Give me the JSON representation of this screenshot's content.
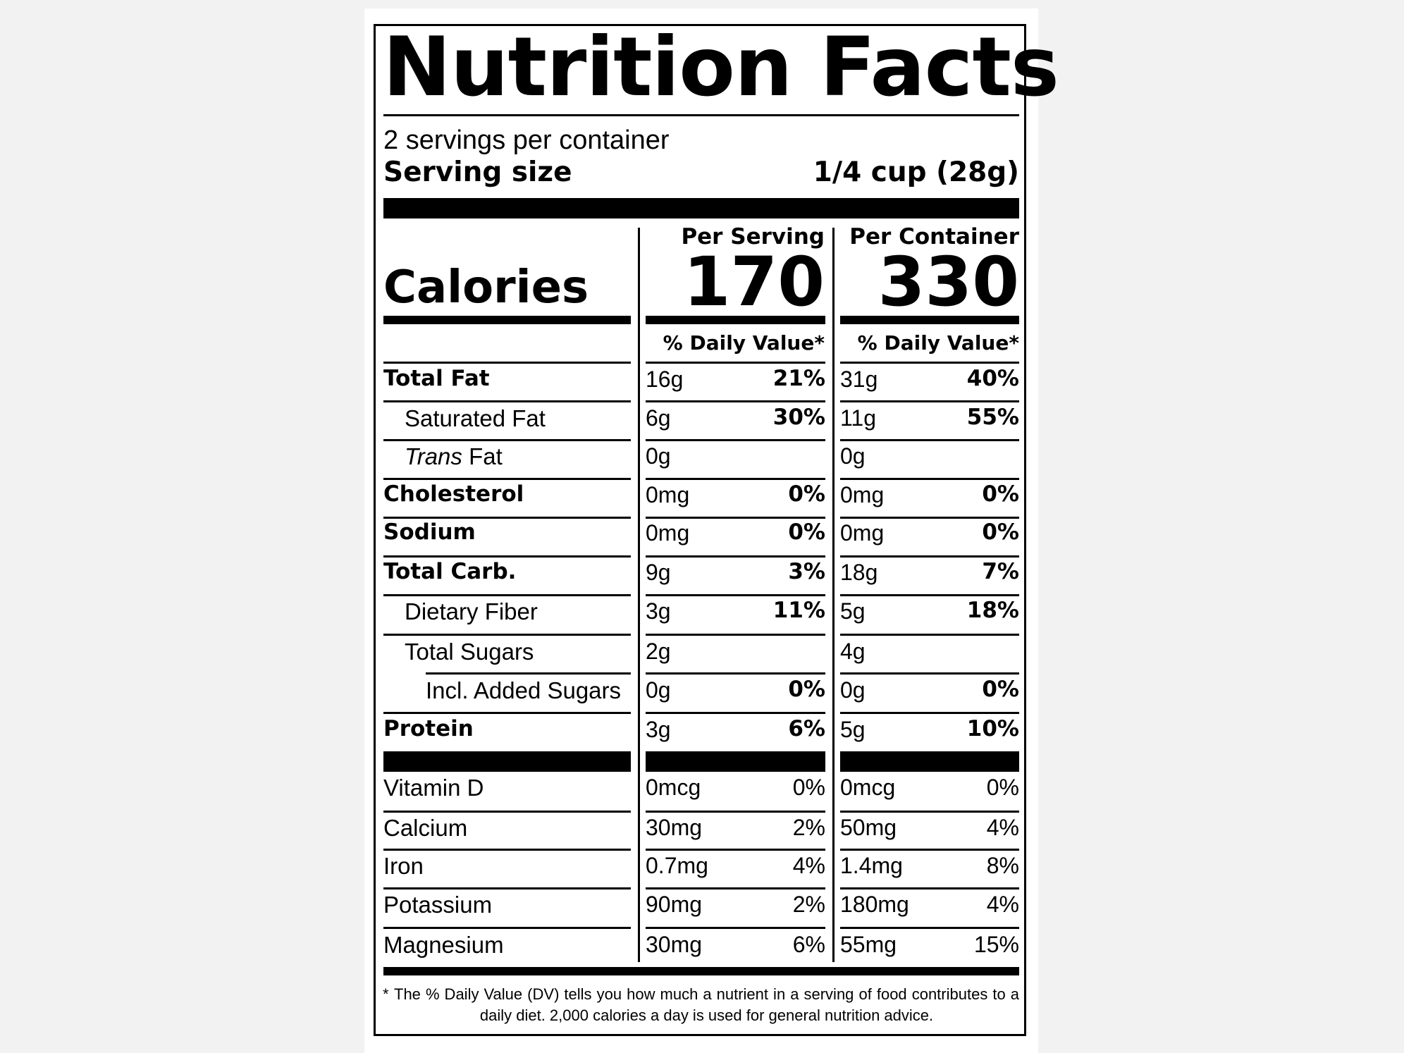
{
  "label": {
    "title": "Nutrition Facts",
    "servings_per_container": "2 servings per container",
    "serving_size_label": "Serving size",
    "serving_size_value": "1/4 cup (28g)",
    "calories_label": "Calories",
    "columns": [
      {
        "header": "Per Serving",
        "calories": "170",
        "dv_header": "% Daily Value*"
      },
      {
        "header": "Per Container",
        "calories": "330",
        "dv_header": "% Daily Value*"
      }
    ],
    "nutrients": [
      {
        "label": "Total Fat",
        "bold": true,
        "indent": 0,
        "serving": {
          "amount": "16g",
          "dv": "21%"
        },
        "container": {
          "amount": "31g",
          "dv": "40%"
        }
      },
      {
        "label": "Saturated Fat",
        "bold": false,
        "indent": 1,
        "serving": {
          "amount": "6g",
          "dv": "30%"
        },
        "container": {
          "amount": "11g",
          "dv": "55%"
        }
      },
      {
        "label_italic": "Trans",
        "label": "Fat",
        "bold": false,
        "indent": 1,
        "serving": {
          "amount": "0g",
          "dv": ""
        },
        "container": {
          "amount": "0g",
          "dv": ""
        }
      },
      {
        "label": "Cholesterol",
        "bold": true,
        "indent": 0,
        "serving": {
          "amount": "0mg",
          "dv": "0%"
        },
        "container": {
          "amount": "0mg",
          "dv": "0%"
        }
      },
      {
        "label": "Sodium",
        "bold": true,
        "indent": 0,
        "serving": {
          "amount": "0mg",
          "dv": "0%"
        },
        "container": {
          "amount": "0mg",
          "dv": "0%"
        }
      },
      {
        "label": "Total Carb.",
        "bold": true,
        "indent": 0,
        "serving": {
          "amount": "9g",
          "dv": "3%"
        },
        "container": {
          "amount": "18g",
          "dv": "7%"
        }
      },
      {
        "label": "Dietary Fiber",
        "bold": false,
        "indent": 1,
        "serving": {
          "amount": "3g",
          "dv": "11%"
        },
        "container": {
          "amount": "5g",
          "dv": "18%"
        }
      },
      {
        "label": "Total Sugars",
        "bold": false,
        "indent": 1,
        "serving": {
          "amount": "2g",
          "dv": ""
        },
        "container": {
          "amount": "4g",
          "dv": ""
        }
      },
      {
        "label": "Incl. Added Sugars",
        "bold": false,
        "indent": 2,
        "serving": {
          "amount": "0g",
          "dv": "0%"
        },
        "container": {
          "amount": "0g",
          "dv": "0%"
        }
      },
      {
        "label": "Protein",
        "bold": true,
        "indent": 0,
        "serving": {
          "amount": "3g",
          "dv": "6%"
        },
        "container": {
          "amount": "5g",
          "dv": "10%"
        }
      }
    ],
    "vitamins": [
      {
        "label": "Vitamin D",
        "serving": {
          "amount": "0mcg",
          "dv": "0%"
        },
        "container": {
          "amount": "0mcg",
          "dv": "0%"
        }
      },
      {
        "label": "Calcium",
        "serving": {
          "amount": "30mg",
          "dv": "2%"
        },
        "container": {
          "amount": "50mg",
          "dv": "4%"
        }
      },
      {
        "label": "Iron",
        "serving": {
          "amount": "0.7mg",
          "dv": "4%"
        },
        "container": {
          "amount": "1.4mg",
          "dv": "8%"
        }
      },
      {
        "label": "Potassium",
        "serving": {
          "amount": "90mg",
          "dv": "2%"
        },
        "container": {
          "amount": "180mg",
          "dv": "4%"
        }
      },
      {
        "label": "Magnesium",
        "serving": {
          "amount": "30mg",
          "dv": "6%"
        },
        "container": {
          "amount": "55mg",
          "dv": "15%"
        }
      }
    ],
    "footnote_asterisk": "*",
    "footnote": "The % Daily Value (DV) tells you how much a nutrient in a serving of food contributes to a daily diet. 2,000 calories a day is used for general nutrition advice."
  }
}
